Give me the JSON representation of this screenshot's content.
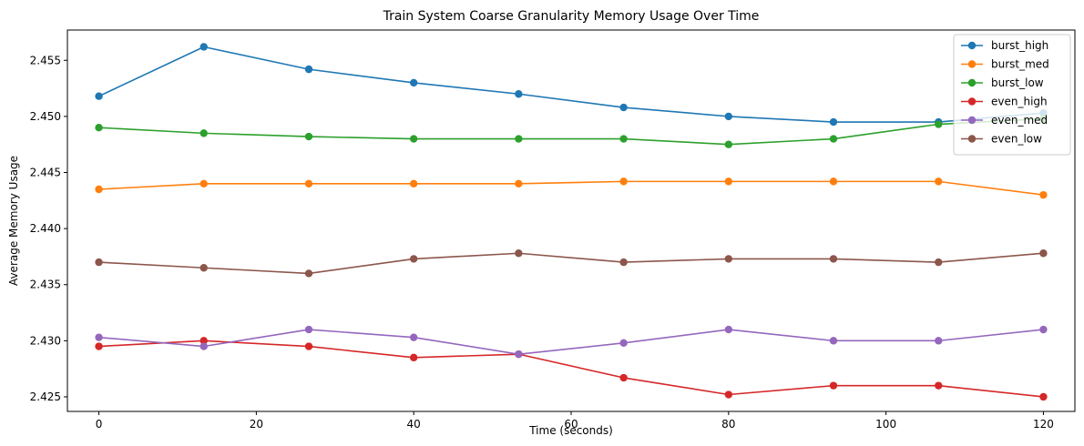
{
  "chart_data": {
    "type": "line",
    "title": "Train System Coarse Granularity Memory Usage Over Time",
    "xlabel": "Time (seconds)",
    "ylabel": "Average Memory Usage",
    "xlim": [
      -4,
      124
    ],
    "ylim": [
      2.4237,
      2.4577
    ],
    "xticks": [
      0,
      20,
      40,
      60,
      80,
      100,
      120
    ],
    "xtick_labels": [
      "0",
      "20",
      "40",
      "60",
      "80",
      "100",
      "120"
    ],
    "yticks": [
      2.425,
      2.43,
      2.435,
      2.44,
      2.445,
      2.45,
      2.455
    ],
    "ytick_labels": [
      "2.425",
      "2.430",
      "2.435",
      "2.440",
      "2.445",
      "2.450",
      "2.455"
    ],
    "grid": false,
    "legend_position": "top-right",
    "x": [
      0,
      13.33,
      26.67,
      40,
      53.33,
      66.67,
      80,
      93.33,
      106.67,
      120
    ],
    "series": [
      {
        "name": "burst_high",
        "color": "#1f77b4",
        "values": [
          2.4518,
          2.4562,
          2.4542,
          2.453,
          2.452,
          2.4508,
          2.45,
          2.4495,
          2.4495,
          2.4503
        ]
      },
      {
        "name": "burst_med",
        "color": "#ff7f0e",
        "values": [
          2.4435,
          2.444,
          2.444,
          2.444,
          2.444,
          2.4442,
          2.4442,
          2.4442,
          2.4442,
          2.443
        ]
      },
      {
        "name": "burst_low",
        "color": "#2ca02c",
        "values": [
          2.449,
          2.4485,
          2.4482,
          2.448,
          2.448,
          2.448,
          2.4475,
          2.448,
          2.4493,
          2.4498
        ]
      },
      {
        "name": "even_high",
        "color": "#d62728",
        "values": [
          2.4295,
          2.43,
          2.4295,
          2.4285,
          2.4288,
          2.4267,
          2.4252,
          2.426,
          2.426,
          2.425
        ]
      },
      {
        "name": "even_med",
        "color": "#9467bd",
        "values": [
          2.4303,
          2.4295,
          2.431,
          2.4303,
          2.4288,
          2.4298,
          2.431,
          2.43,
          2.43,
          2.431
        ]
      },
      {
        "name": "even_low",
        "color": "#8c564b",
        "values": [
          2.437,
          2.4365,
          2.436,
          2.4373,
          2.4378,
          2.437,
          2.4373,
          2.4373,
          2.437,
          2.4378
        ]
      }
    ]
  }
}
